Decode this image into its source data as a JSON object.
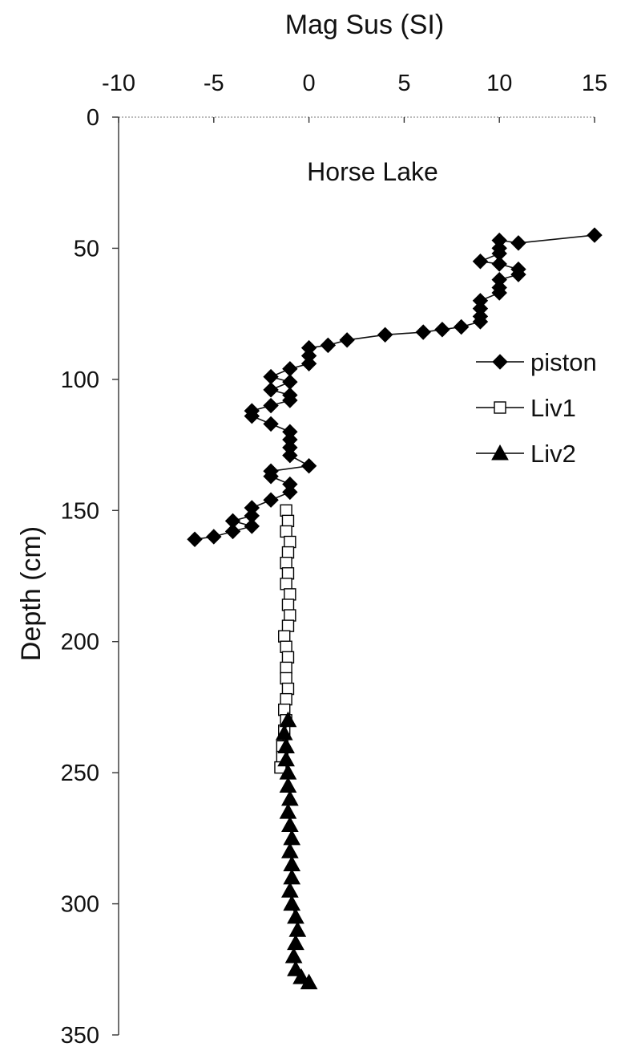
{
  "chart_data": {
    "type": "scatter",
    "title": "Horse Lake",
    "xlabel": "Mag Sus (SI)",
    "ylabel": "Depth (cm)",
    "xlim": [
      -10,
      15
    ],
    "ylim": [
      0,
      350
    ],
    "y_inverted": true,
    "x_axis_position": "top",
    "grid": false,
    "legend_position": "right",
    "xticks": [
      -10,
      -5,
      0,
      5,
      10,
      15
    ],
    "yticks": [
      0,
      50,
      100,
      150,
      200,
      250,
      300,
      350
    ],
    "xtick_labels": [
      "-10",
      "-5",
      "0",
      "5",
      "10",
      "15"
    ],
    "ytick_labels": [
      "0",
      "50",
      "100",
      "150",
      "200",
      "250",
      "300",
      "350"
    ],
    "series": [
      {
        "name": "piston",
        "marker": "diamond",
        "color": "#000000",
        "points": [
          [
            15,
            45
          ],
          [
            11,
            48
          ],
          [
            10,
            47
          ],
          [
            10,
            50
          ],
          [
            10,
            52
          ],
          [
            9,
            55
          ],
          [
            10,
            56
          ],
          [
            11,
            58
          ],
          [
            11,
            60
          ],
          [
            10,
            62
          ],
          [
            10,
            65
          ],
          [
            10,
            67
          ],
          [
            9,
            70
          ],
          [
            9,
            73
          ],
          [
            9,
            76
          ],
          [
            9,
            78
          ],
          [
            8,
            80
          ],
          [
            7,
            81
          ],
          [
            6,
            82
          ],
          [
            4,
            83
          ],
          [
            2,
            85
          ],
          [
            1,
            87
          ],
          [
            0,
            88
          ],
          [
            0,
            91
          ],
          [
            0,
            94
          ],
          [
            -1,
            96
          ],
          [
            -2,
            99
          ],
          [
            -1,
            101
          ],
          [
            -2,
            104
          ],
          [
            -1,
            106
          ],
          [
            -1,
            108
          ],
          [
            -2,
            110
          ],
          [
            -3,
            112
          ],
          [
            -3,
            114
          ],
          [
            -2,
            117
          ],
          [
            -1,
            120
          ],
          [
            -1,
            123
          ],
          [
            -1,
            126
          ],
          [
            -1,
            129
          ],
          [
            0,
            133
          ],
          [
            -2,
            135
          ],
          [
            -2,
            137
          ],
          [
            -1,
            140
          ],
          [
            -1,
            143
          ],
          [
            -2,
            146
          ],
          [
            -3,
            149
          ],
          [
            -3,
            152
          ],
          [
            -4,
            154
          ],
          [
            -3,
            156
          ],
          [
            -4,
            158
          ],
          [
            -5,
            160
          ],
          [
            -6,
            161
          ]
        ]
      },
      {
        "name": "Liv1",
        "marker": "square-open",
        "color": "#000000",
        "points": [
          [
            -1.2,
            150
          ],
          [
            -1.1,
            154
          ],
          [
            -1.2,
            158
          ],
          [
            -1.0,
            162
          ],
          [
            -1.1,
            166
          ],
          [
            -1.2,
            170
          ],
          [
            -1.1,
            174
          ],
          [
            -1.2,
            178
          ],
          [
            -1.0,
            182
          ],
          [
            -1.1,
            186
          ],
          [
            -1.0,
            190
          ],
          [
            -1.1,
            194
          ],
          [
            -1.3,
            198
          ],
          [
            -1.2,
            202
          ],
          [
            -1.1,
            206
          ],
          [
            -1.2,
            210
          ],
          [
            -1.2,
            214
          ],
          [
            -1.1,
            218
          ],
          [
            -1.2,
            222
          ],
          [
            -1.3,
            226
          ],
          [
            -1.2,
            230
          ],
          [
            -1.3,
            234
          ],
          [
            -1.4,
            240
          ],
          [
            -1.4,
            244
          ],
          [
            -1.5,
            248
          ]
        ]
      },
      {
        "name": "Liv2",
        "marker": "triangle",
        "color": "#000000",
        "points": [
          [
            -1.1,
            230
          ],
          [
            -1.3,
            235
          ],
          [
            -1.2,
            240
          ],
          [
            -1.2,
            245
          ],
          [
            -1.1,
            250
          ],
          [
            -1.1,
            255
          ],
          [
            -1.0,
            260
          ],
          [
            -1.1,
            265
          ],
          [
            -1.0,
            270
          ],
          [
            -0.9,
            275
          ],
          [
            -1.0,
            280
          ],
          [
            -0.9,
            285
          ],
          [
            -0.9,
            290
          ],
          [
            -1.0,
            295
          ],
          [
            -0.9,
            300
          ],
          [
            -0.7,
            305
          ],
          [
            -0.6,
            310
          ],
          [
            -0.7,
            315
          ],
          [
            -0.8,
            320
          ],
          [
            -0.7,
            325
          ],
          [
            -0.4,
            328
          ],
          [
            0.0,
            330
          ]
        ]
      }
    ]
  }
}
